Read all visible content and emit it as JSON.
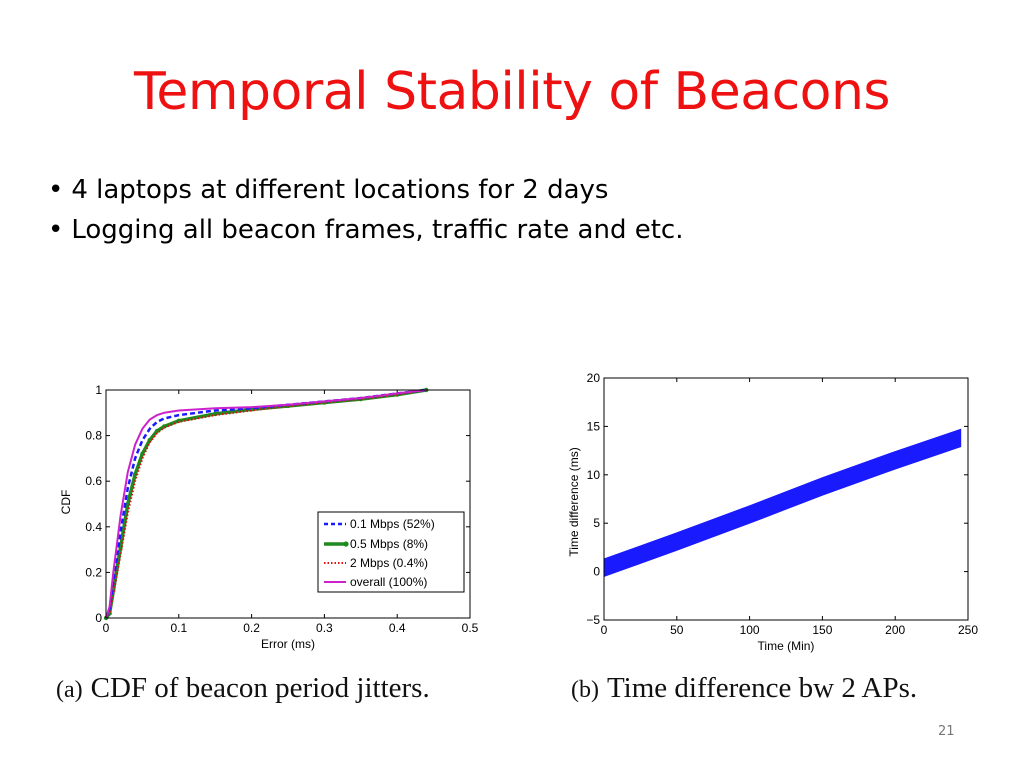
{
  "slide": {
    "title": "Temporal Stability of Beacons",
    "bullets": [
      "4 laptops at different locations for 2 days",
      "Logging all beacon frames, traffic rate and etc."
    ],
    "slide_number": "21"
  },
  "captions": {
    "a_tag": "(a)",
    "a_text": "CDF of beacon period jitters.",
    "b_tag": "(b)",
    "b_text": "Time difference bw 2 APs."
  },
  "colors": {
    "title": "#ee1111",
    "series_0_1": "#1a1aff",
    "series_0_5": "#1f8a1f",
    "series_2": "#e01010",
    "series_overall": "#cc22cc",
    "time_diff": "#1a1aff"
  },
  "chart_data": [
    {
      "type": "line",
      "title": "",
      "xlabel": "Error (ms)",
      "ylabel": "CDF",
      "xlim": [
        0,
        0.5
      ],
      "ylim": [
        0,
        1
      ],
      "xticks": [
        "0",
        "0.1",
        "0.2",
        "0.3",
        "0.4",
        "0.5"
      ],
      "yticks": [
        "0",
        "0.2",
        "0.4",
        "0.6",
        "0.8",
        "1"
      ],
      "legend_position": "bottom-right",
      "grid": false,
      "series": [
        {
          "name": "0.1 Mbps (52%)",
          "style": "dashed",
          "points": [
            [
              0,
              0
            ],
            [
              0.005,
              0.04
            ],
            [
              0.01,
              0.16
            ],
            [
              0.02,
              0.38
            ],
            [
              0.03,
              0.57
            ],
            [
              0.04,
              0.7
            ],
            [
              0.05,
              0.78
            ],
            [
              0.06,
              0.83
            ],
            [
              0.07,
              0.86
            ],
            [
              0.08,
              0.875
            ],
            [
              0.1,
              0.89
            ],
            [
              0.15,
              0.91
            ],
            [
              0.2,
              0.92
            ],
            [
              0.25,
              0.935
            ],
            [
              0.3,
              0.95
            ],
            [
              0.35,
              0.965
            ],
            [
              0.4,
              0.985
            ],
            [
              0.44,
              1
            ]
          ]
        },
        {
          "name": "0.5 Mbps (8%)",
          "style": "solid-thick",
          "points": [
            [
              0,
              0
            ],
            [
              0.005,
              0.02
            ],
            [
              0.01,
              0.12
            ],
            [
              0.02,
              0.31
            ],
            [
              0.03,
              0.5
            ],
            [
              0.04,
              0.63
            ],
            [
              0.05,
              0.72
            ],
            [
              0.06,
              0.78
            ],
            [
              0.07,
              0.82
            ],
            [
              0.08,
              0.84
            ],
            [
              0.1,
              0.865
            ],
            [
              0.15,
              0.895
            ],
            [
              0.2,
              0.915
            ],
            [
              0.25,
              0.93
            ],
            [
              0.3,
              0.945
            ],
            [
              0.35,
              0.96
            ],
            [
              0.4,
              0.98
            ],
            [
              0.44,
              1
            ]
          ]
        },
        {
          "name": "2 Mbps (0.4%)",
          "style": "dotted",
          "points": [
            [
              0,
              0
            ],
            [
              0.005,
              0.02
            ],
            [
              0.01,
              0.1
            ],
            [
              0.02,
              0.28
            ],
            [
              0.03,
              0.46
            ],
            [
              0.04,
              0.6
            ],
            [
              0.05,
              0.7
            ],
            [
              0.06,
              0.77
            ],
            [
              0.07,
              0.81
            ],
            [
              0.08,
              0.835
            ],
            [
              0.1,
              0.86
            ],
            [
              0.15,
              0.89
            ],
            [
              0.2,
              0.91
            ],
            [
              0.25,
              0.93
            ],
            [
              0.3,
              0.945
            ],
            [
              0.35,
              0.96
            ],
            [
              0.4,
              0.98
            ],
            [
              0.44,
              1
            ]
          ]
        },
        {
          "name": "overall (100%)",
          "style": "solid",
          "points": [
            [
              0,
              0
            ],
            [
              0.005,
              0.05
            ],
            [
              0.01,
              0.2
            ],
            [
              0.02,
              0.45
            ],
            [
              0.03,
              0.64
            ],
            [
              0.04,
              0.76
            ],
            [
              0.05,
              0.83
            ],
            [
              0.06,
              0.87
            ],
            [
              0.07,
              0.89
            ],
            [
              0.08,
              0.9
            ],
            [
              0.1,
              0.91
            ],
            [
              0.15,
              0.92
            ],
            [
              0.2,
              0.925
            ],
            [
              0.25,
              0.935
            ],
            [
              0.3,
              0.95
            ],
            [
              0.35,
              0.965
            ],
            [
              0.4,
              0.985
            ],
            [
              0.44,
              1
            ]
          ]
        }
      ]
    },
    {
      "type": "line",
      "title": "",
      "xlabel": "Time (Min)",
      "ylabel": "Time difference (ms)",
      "xlim": [
        0,
        250
      ],
      "ylim": [
        -5,
        20
      ],
      "xticks": [
        "0",
        "50",
        "100",
        "150",
        "200",
        "250"
      ],
      "yticks": [
        "−5",
        "0",
        "5",
        "10",
        "15",
        "20"
      ],
      "grid": false,
      "series": [
        {
          "name": "",
          "style": "band",
          "band_width": 1.8,
          "points": [
            [
              0,
              0.4
            ],
            [
              50,
              3.1
            ],
            [
              100,
              5.9
            ],
            [
              150,
              8.8
            ],
            [
              200,
              11.5
            ],
            [
              245,
              13.8
            ]
          ]
        }
      ]
    }
  ]
}
